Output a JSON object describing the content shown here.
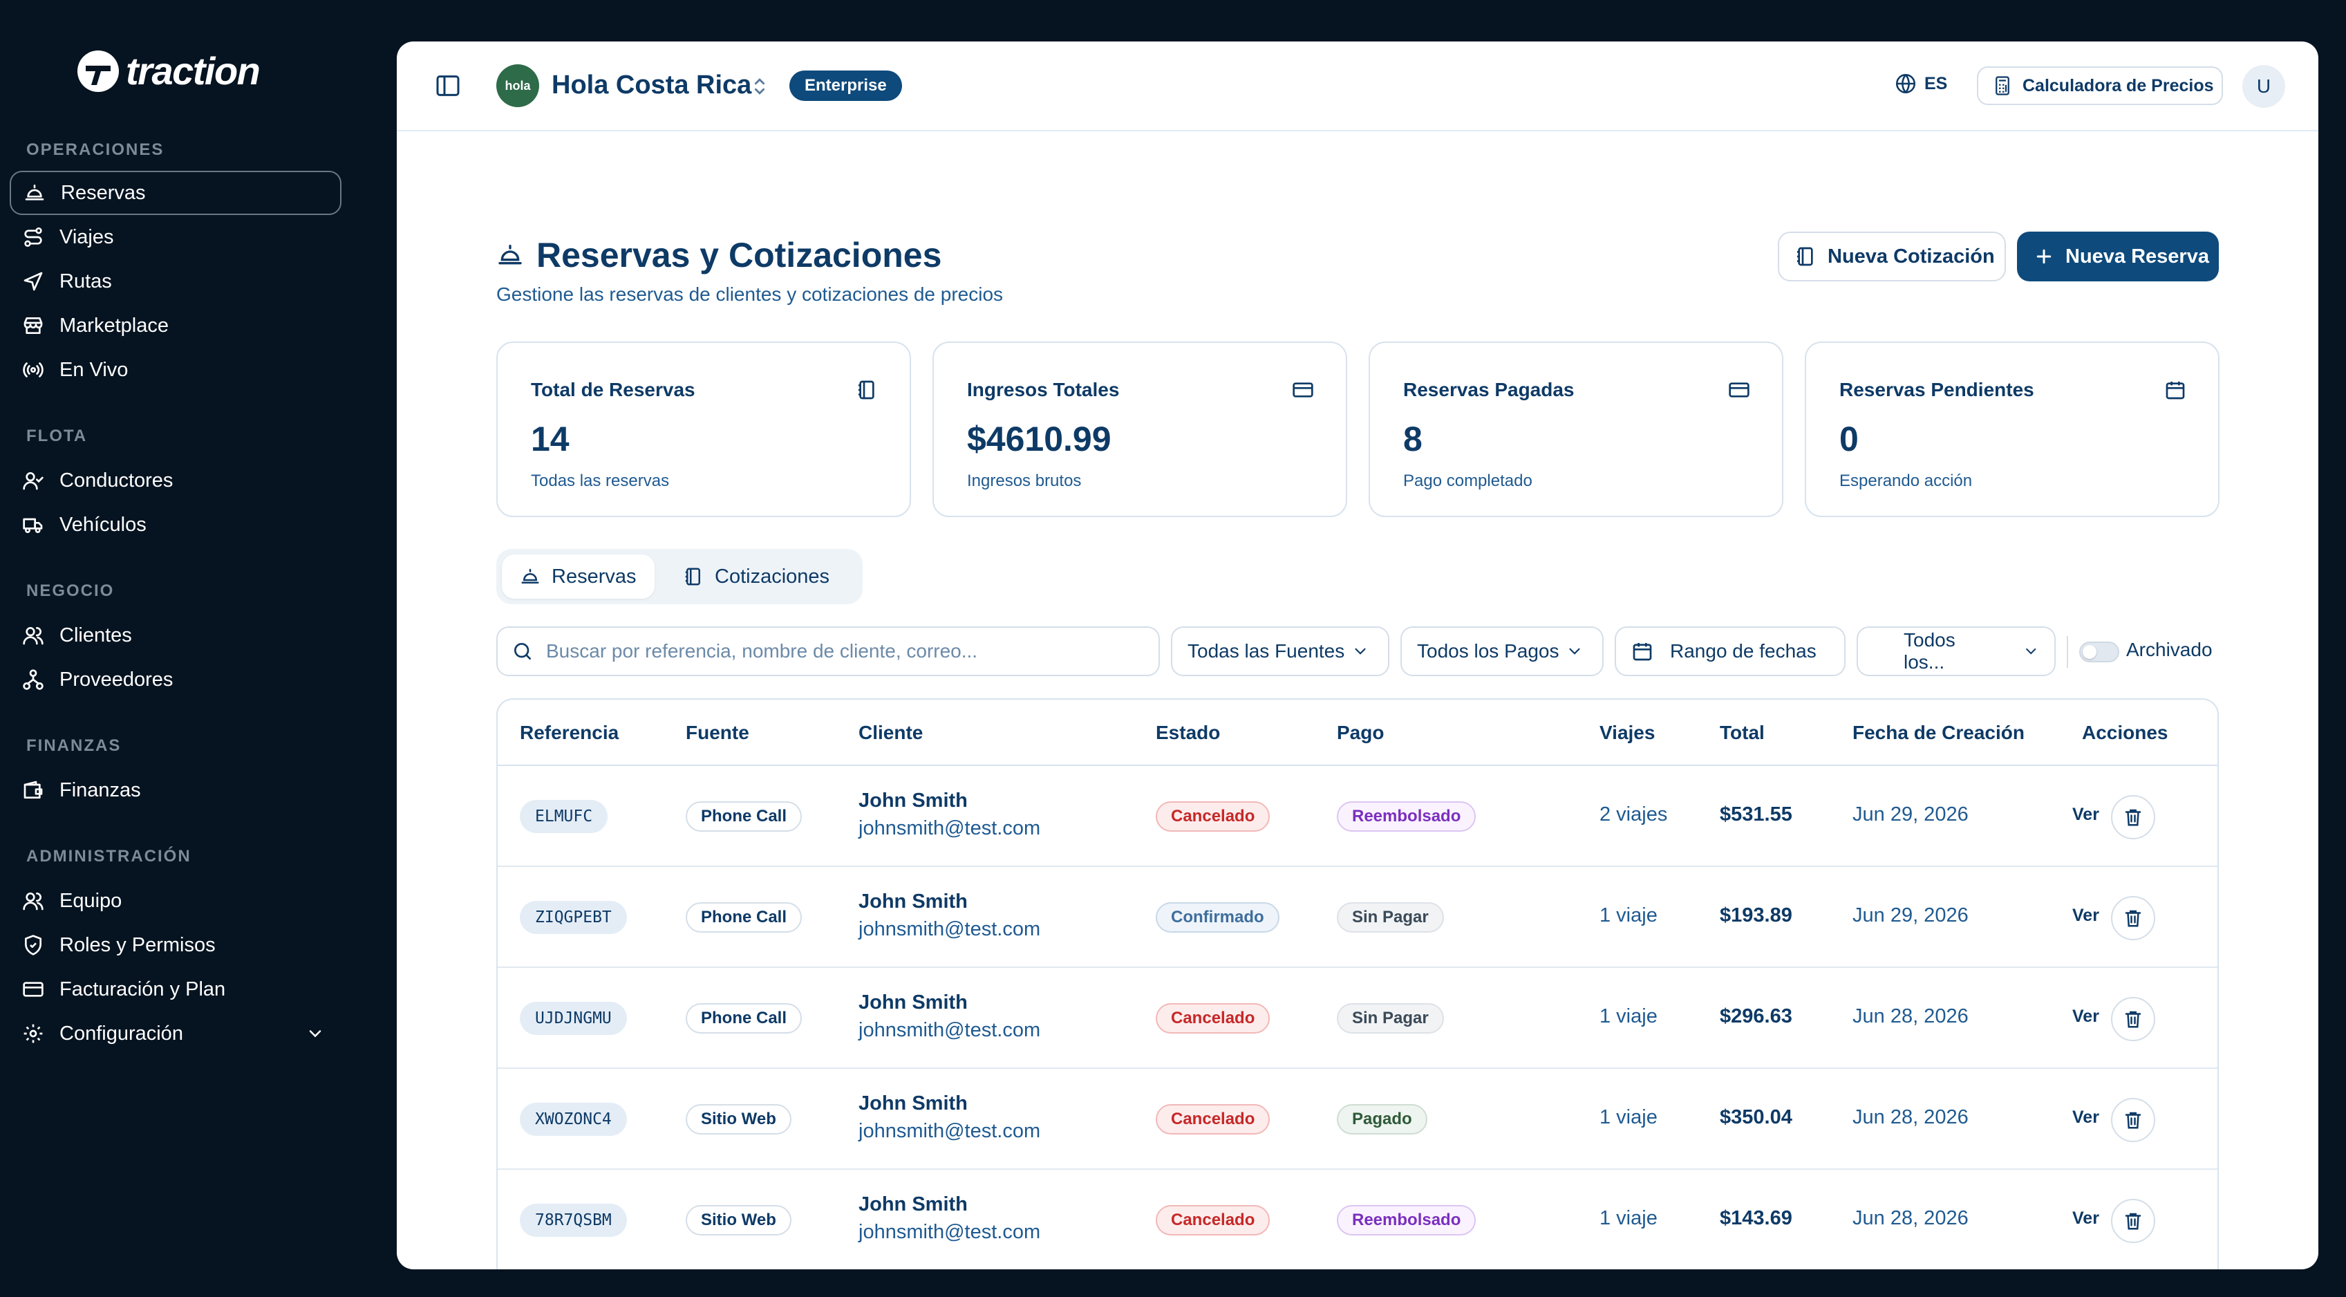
{
  "app": {
    "logo_text": "traction"
  },
  "sidebar": {
    "sections": [
      {
        "title": "OPERACIONES",
        "items": [
          {
            "label": "Reservas",
            "icon": "bell-icon",
            "active": true
          },
          {
            "label": "Viajes",
            "icon": "route-icon"
          },
          {
            "label": "Rutas",
            "icon": "navigation-icon"
          },
          {
            "label": "Marketplace",
            "icon": "store-icon"
          },
          {
            "label": "En Vivo",
            "icon": "radio-icon"
          }
        ]
      },
      {
        "title": "FLOTA",
        "items": [
          {
            "label": "Conductores",
            "icon": "user-check-icon"
          },
          {
            "label": "Vehículos",
            "icon": "truck-icon"
          }
        ]
      },
      {
        "title": "NEGOCIO",
        "items": [
          {
            "label": "Clientes",
            "icon": "users-icon"
          },
          {
            "label": "Proveedores",
            "icon": "network-icon"
          }
        ]
      },
      {
        "title": "FINANZAS",
        "items": [
          {
            "label": "Finanzas",
            "icon": "wallet-icon"
          }
        ]
      },
      {
        "title": "ADMINISTRACIÓN",
        "items": [
          {
            "label": "Equipo",
            "icon": "users-icon"
          },
          {
            "label": "Roles y Permisos",
            "icon": "shield-icon"
          },
          {
            "label": "Facturación y Plan",
            "icon": "credit-card-icon"
          },
          {
            "label": "Configuración",
            "icon": "gear-icon",
            "has_chevron": true
          }
        ]
      }
    ]
  },
  "topbar": {
    "org_avatar_text": "hola",
    "org_name": "Hola Costa Rica",
    "plan_badge": "Enterprise",
    "language": "ES",
    "calculator_label": "Calculadora de Precios",
    "user_initial": "U"
  },
  "page": {
    "title": "Reservas y Cotizaciones",
    "subtitle": "Gestione las reservas de clientes y cotizaciones de precios",
    "new_quote_label": "Nueva Cotización",
    "new_booking_label": "Nueva Reserva"
  },
  "stats": [
    {
      "label": "Total de Reservas",
      "value": "14",
      "sub": "Todas las reservas",
      "icon": "book-icon"
    },
    {
      "label": "Ingresos Totales",
      "value": "$4610.99",
      "sub": "Ingresos brutos",
      "icon": "credit-card-icon"
    },
    {
      "label": "Reservas Pagadas",
      "value": "8",
      "sub": "Pago completado",
      "icon": "credit-card-icon"
    },
    {
      "label": "Reservas Pendientes",
      "value": "0",
      "sub": "Esperando acción",
      "icon": "calendar-icon"
    }
  ],
  "tabs": [
    {
      "label": "Reservas",
      "active": true
    },
    {
      "label": "Cotizaciones",
      "active": false
    }
  ],
  "filters": {
    "search_placeholder": "Buscar por referencia, nombre de cliente, correo...",
    "sources": "Todas las Fuentes",
    "payments": "Todos los Pagos",
    "date_range": "Rango de fechas",
    "status": "Todos los...",
    "archived_label": "Archivado",
    "archived_on": false
  },
  "table": {
    "headers": [
      "Referencia",
      "Fuente",
      "Cliente",
      "Estado",
      "Pago",
      "Viajes",
      "Total",
      "Fecha de Creación",
      "Acciones"
    ],
    "view_label": "Ver",
    "rows": [
      {
        "ref": "ELMUFC",
        "source": "Phone Call",
        "client": "John Smith",
        "email": "johnsmith@test.com",
        "status": "Cancelado",
        "payment": "Reembolsado",
        "trips": "2 viajes",
        "total": "$531.55",
        "created": "Jun 29, 2026"
      },
      {
        "ref": "ZIQGPEBT",
        "source": "Phone Call",
        "client": "John Smith",
        "email": "johnsmith@test.com",
        "status": "Confirmado",
        "payment": "Sin Pagar",
        "trips": "1 viaje",
        "total": "$193.89",
        "created": "Jun 29, 2026"
      },
      {
        "ref": "UJDJNGMU",
        "source": "Phone Call",
        "client": "John Smith",
        "email": "johnsmith@test.com",
        "status": "Cancelado",
        "payment": "Sin Pagar",
        "trips": "1 viaje",
        "total": "$296.63",
        "created": "Jun 28, 2026"
      },
      {
        "ref": "XWOZONC4",
        "source": "Sitio Web",
        "client": "John Smith",
        "email": "johnsmith@test.com",
        "status": "Cancelado",
        "payment": "Pagado",
        "trips": "1 viaje",
        "total": "$350.04",
        "created": "Jun 28, 2026"
      },
      {
        "ref": "78R7QSBM",
        "source": "Sitio Web",
        "client": "John Smith",
        "email": "johnsmith@test.com",
        "status": "Cancelado",
        "payment": "Reembolsado",
        "trips": "1 viaje",
        "total": "$143.69",
        "created": "Jun 28, 2026"
      }
    ]
  },
  "colors": {
    "sidebar_bg": "#061320",
    "primary": "#0e4a7c",
    "status_cancelled": "#c62828",
    "status_confirmed": "#3e6e9c",
    "payment_refunded": "#7b2fbe",
    "payment_unpaid": "#3b4a58",
    "payment_paid": "#2f5a3a"
  }
}
